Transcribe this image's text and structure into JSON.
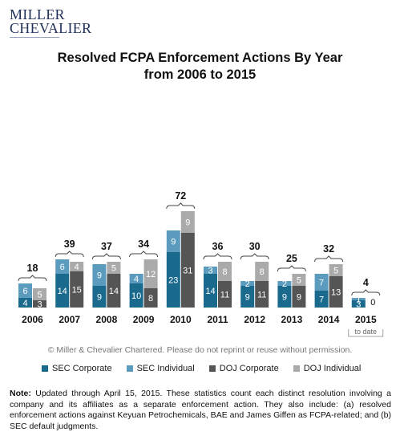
{
  "logo": {
    "line1": "MILLER",
    "line2": "CHEVALIER"
  },
  "title_line1": "Resolved FCPA Enforcement Actions By Year",
  "title_line2": "from 2006 to 2015",
  "copyright": "© Miller & Chevalier Chartered. Please do not reprint or reuse without permission.",
  "note_label": "Note:",
  "note_text": "Updated through April 15, 2015. These statistics count each distinct resolution involving a company and its affiliates as a separate enforcement action. They also include: (a) resolved enforcement actions against Keyuan Petrochemicals, BAE and James Giffen as FCPA-related; and (b) SEC default judgments.",
  "colors": {
    "sec_corporate": "#1a6a8e",
    "sec_individual": "#5b9bbd",
    "doj_corporate": "#555555",
    "doj_individual": "#aaaaaa"
  },
  "chart_data": {
    "type": "bar",
    "categories": [
      "2006",
      "2007",
      "2008",
      "2009",
      "2010",
      "2011",
      "2012",
      "2013",
      "2014",
      "2015"
    ],
    "category_sublabels": [
      "",
      "",
      "",
      "",
      "",
      "",
      "",
      "",
      "",
      "to date"
    ],
    "totals": [
      18,
      39,
      37,
      34,
      72,
      36,
      30,
      25,
      32,
      4
    ],
    "series": [
      {
        "name": "SEC Corporate",
        "values": [
          4,
          14,
          9,
          10,
          23,
          14,
          9,
          9,
          7,
          3
        ]
      },
      {
        "name": "SEC Individual",
        "values": [
          6,
          6,
          9,
          4,
          9,
          3,
          2,
          2,
          7,
          1
        ]
      },
      {
        "name": "DOJ Corporate",
        "values": [
          3,
          15,
          14,
          8,
          31,
          11,
          11,
          9,
          13,
          0
        ]
      },
      {
        "name": "DOJ Individual",
        "values": [
          5,
          4,
          5,
          12,
          9,
          8,
          8,
          5,
          5,
          0
        ]
      }
    ],
    "stacks": [
      [
        "SEC Corporate",
        "SEC Individual"
      ],
      [
        "DOJ Corporate",
        "DOJ Individual"
      ]
    ]
  }
}
